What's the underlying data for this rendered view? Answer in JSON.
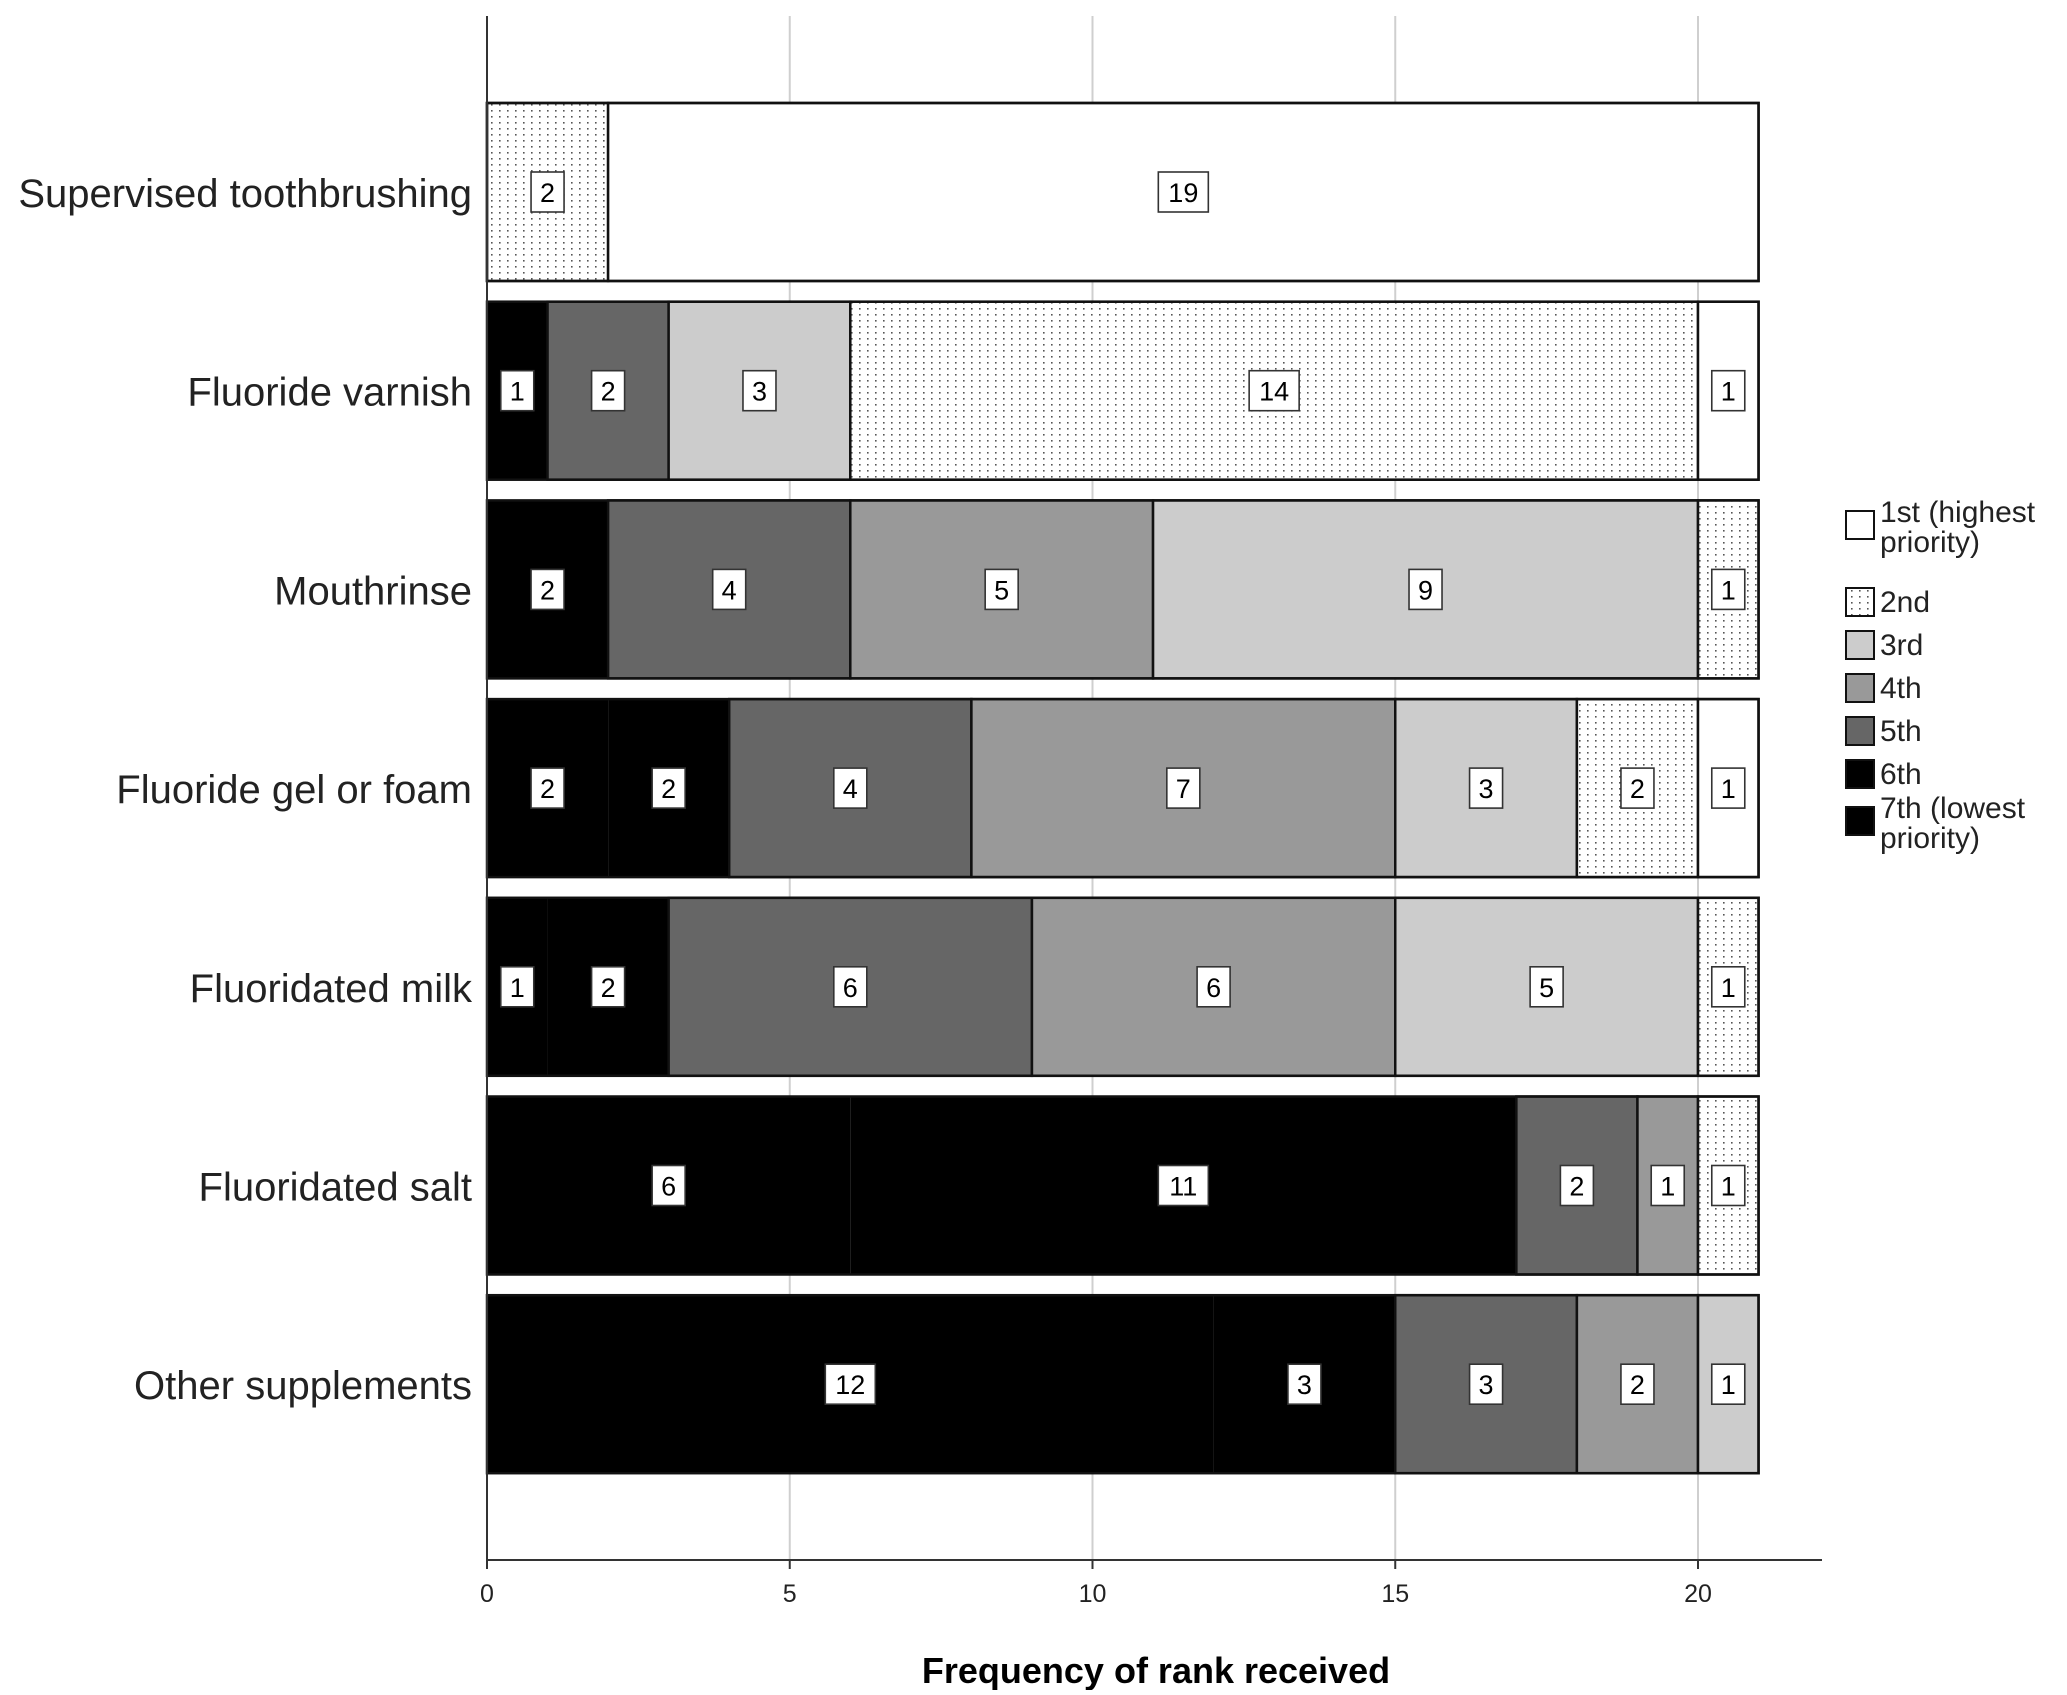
{
  "chart_data": {
    "type": "bar",
    "orientation": "horizontal",
    "stacked": true,
    "title": "",
    "xlabel": "Frequency of rank received",
    "ylabel": "",
    "xlim": [
      0,
      22
    ],
    "xticks": [
      0,
      5,
      10,
      15,
      20
    ],
    "grid": "vertical",
    "legend_position": "right",
    "categories": [
      "Supervised toothbrushing",
      "Fluoride varnish",
      "Mouthrinse",
      "Fluoride gel or foam",
      "Fluoridated milk",
      "Fluoridated salt",
      "Other supplements"
    ],
    "series": [
      {
        "name": "7th (lowest priority)",
        "color": "#000000",
        "pattern": "solid",
        "values": [
          0,
          0,
          0,
          2,
          1,
          6,
          12
        ]
      },
      {
        "name": "6th",
        "color": "#000000",
        "pattern": "solid",
        "values": [
          0,
          1,
          2,
          2,
          2,
          11,
          3
        ]
      },
      {
        "name": "5th",
        "color": "#666666",
        "pattern": "solid",
        "values": [
          0,
          2,
          4,
          4,
          6,
          2,
          3
        ]
      },
      {
        "name": "4th",
        "color": "#999999",
        "pattern": "solid",
        "values": [
          0,
          0,
          5,
          7,
          6,
          1,
          2
        ]
      },
      {
        "name": "3rd",
        "color": "#cccccc",
        "pattern": "solid",
        "values": [
          0,
          3,
          9,
          3,
          5,
          0,
          1
        ]
      },
      {
        "name": "2nd",
        "color": "#ffffff",
        "pattern": "dotted",
        "values": [
          2,
          14,
          1,
          2,
          1,
          1,
          0
        ]
      },
      {
        "name": "1st (highest priority)",
        "color": "#ffffff",
        "pattern": "solid",
        "values": [
          19,
          1,
          0,
          1,
          0,
          0,
          0
        ]
      }
    ],
    "legend": [
      {
        "label": "1st (highest priority)",
        "series": 6
      },
      {
        "label": "2nd",
        "series": 5
      },
      {
        "label": "3rd",
        "series": 4
      },
      {
        "label": "4th",
        "series": 3
      },
      {
        "label": "5th",
        "series": 2
      },
      {
        "label": "6th",
        "series": 1
      },
      {
        "label": "7th (lowest priority)",
        "series": 0
      }
    ]
  }
}
